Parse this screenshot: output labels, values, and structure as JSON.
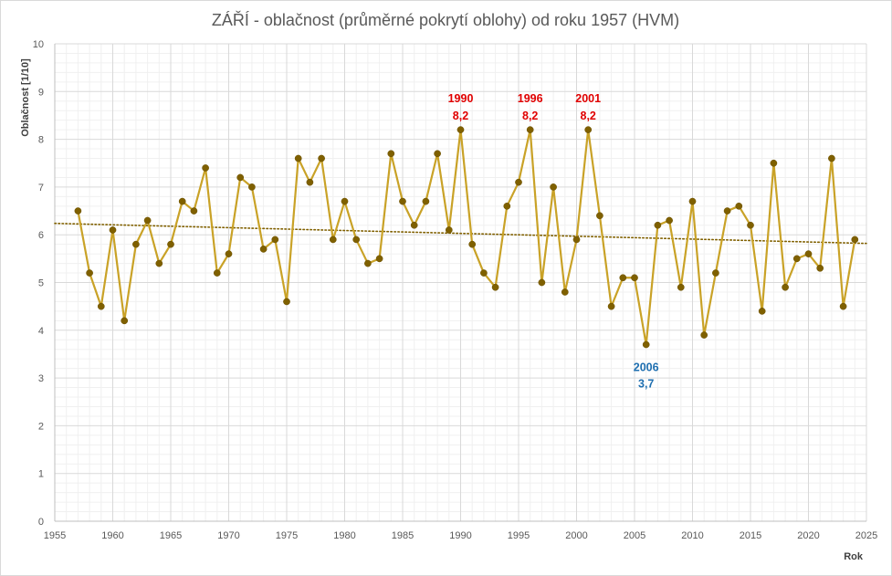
{
  "chart_data": {
    "type": "line",
    "title": "ZÁŘÍ - oblačnost (průměrné pokrytí oblohy) od roku 1957 (HVM)",
    "xlabel": "Rok",
    "ylabel": "Oblačnost  [1/10]",
    "xlim": [
      1955,
      2025
    ],
    "ylim": [
      0,
      10
    ],
    "x_ticks": [
      1955,
      1960,
      1965,
      1970,
      1975,
      1980,
      1985,
      1990,
      1995,
      2000,
      2005,
      2010,
      2015,
      2020,
      2025
    ],
    "y_ticks": [
      0,
      1,
      2,
      3,
      4,
      5,
      6,
      7,
      8,
      9,
      10
    ],
    "grid": true,
    "minor_grid": true,
    "line_color": "#C9A227",
    "marker_color": "#7F6000",
    "trend_color": "#806000",
    "series": [
      {
        "x": [
          1957,
          1958,
          1959,
          1960,
          1961,
          1962,
          1963,
          1964,
          1965,
          1966,
          1967,
          1968,
          1969,
          1970,
          1971,
          1972,
          1973,
          1974,
          1975,
          1976,
          1977,
          1978,
          1979,
          1980,
          1981,
          1982,
          1983,
          1984,
          1985,
          1986,
          1987,
          1988,
          1989,
          1990,
          1991,
          1992,
          1993,
          1994,
          1995,
          1996,
          1997,
          1998,
          1999,
          2000,
          2001,
          2002,
          2003,
          2004,
          2005,
          2006,
          2007,
          2008,
          2009,
          2010,
          2011,
          2012,
          2013,
          2014,
          2015,
          2016,
          2017,
          2018,
          2019,
          2020,
          2021,
          2022,
          2023,
          2024
        ],
        "values": [
          6.5,
          5.2,
          4.5,
          6.1,
          4.2,
          5.8,
          6.3,
          5.4,
          5.8,
          6.7,
          6.5,
          7.4,
          5.2,
          5.6,
          7.2,
          7.0,
          5.7,
          5.9,
          4.6,
          7.6,
          7.1,
          7.6,
          5.9,
          6.7,
          5.9,
          5.4,
          5.5,
          7.7,
          6.7,
          6.2,
          6.7,
          7.7,
          6.1,
          8.2,
          5.8,
          5.2,
          4.9,
          6.6,
          7.1,
          8.2,
          5.0,
          7.0,
          4.8,
          5.9,
          8.2,
          6.4,
          4.5,
          5.1,
          5.1,
          3.7,
          6.2,
          6.3,
          4.9,
          6.7,
          3.9,
          5.2,
          6.5,
          6.6,
          6.2,
          4.4,
          7.5,
          4.9,
          5.5,
          5.6,
          5.3,
          7.6,
          4.5,
          5.9
        ]
      }
    ],
    "trendline": {
      "type": "linear",
      "style": "dotted"
    },
    "annotations": [
      {
        "year": "1990",
        "value": "8,2",
        "x": 1990,
        "y": 8.2,
        "color": "#E00000"
      },
      {
        "year": "1996",
        "value": "8,2",
        "x": 1996,
        "y": 8.2,
        "color": "#E00000"
      },
      {
        "year": "2001",
        "value": "8,2",
        "x": 2001,
        "y": 8.2,
        "color": "#E00000"
      },
      {
        "year": "2006",
        "value": "3,7",
        "x": 2006,
        "y": 3.7,
        "color": "#1F6FB0",
        "below": true
      }
    ]
  }
}
